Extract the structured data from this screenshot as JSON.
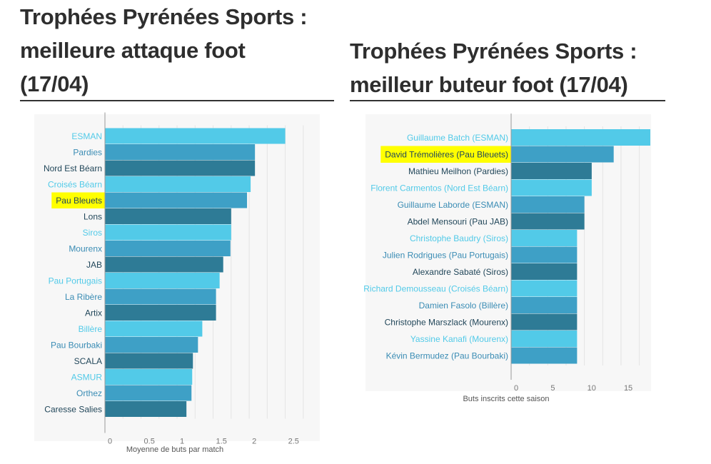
{
  "page": {
    "left_title": [
      "Trophées Pyrénées Sports :",
      "meilleure attaque foot",
      "(17/04)"
    ],
    "right_title": [
      "Trophées Pyrénées Sports :",
      "meilleur buteur foot (17/04)"
    ]
  },
  "colors": {
    "bar_cycle": [
      "#52cae8",
      "#3ea0c6",
      "#2e7b96"
    ],
    "label_cycle": [
      "#52cae8",
      "#3a8cb4",
      "#22475a"
    ],
    "highlight": "#ffff00",
    "grid": "#e4e4e4",
    "axis": "#999999"
  },
  "chart_data": [
    {
      "type": "bar",
      "orientation": "horizontal",
      "categories": [
        "ESMAN",
        "Pardies",
        "Nord Est Béarn",
        "Croisés Béarn",
        "Pau Bleuets",
        "Lons",
        "Siros",
        "Mourenx",
        "JAB",
        "Pau Portugais",
        "La Ribère",
        "Artix",
        "Billère",
        "Pau Bourbaki",
        "SCALA",
        "ASMUR",
        "Orthez",
        "Caresse Salies"
      ],
      "values": [
        2.5,
        2.08,
        2.08,
        2.02,
        1.97,
        1.75,
        1.75,
        1.74,
        1.64,
        1.59,
        1.54,
        1.54,
        1.35,
        1.29,
        1.22,
        1.21,
        1.2,
        1.13
      ],
      "highlighted": "Pau Bleuets",
      "xlabel": "Moyenne de buts par match",
      "ylabel": "",
      "xlim": [
        0,
        2.9
      ],
      "xticks": [
        "0",
        "0.5",
        "1",
        "1.5",
        "2",
        "2.5"
      ],
      "grid": true
    },
    {
      "type": "bar",
      "orientation": "horizontal",
      "categories": [
        "Guillaume Batch (ESMAN)",
        "David Trémolières (Pau Bleuets)",
        "Mathieu Meilhon (Pardies)",
        "Florent Carmentos (Nord Est Béarn)",
        "Guillaume Laborde (ESMAN)",
        "Abdel Mensouri (Pau JAB)",
        "Christophe Baudry (Siros)",
        "Julien Rodrigues (Pau Portugais)",
        "Alexandre Sabaté (Siros)",
        "Richard Demousseau (Croisés Béarn)",
        "Damien Fasolo (Billère)",
        "Christophe Marszlack (Mourenx)",
        "Yassine Kanafi (Mourenx)",
        "Kévin Bermudez (Pau Bourbaki)"
      ],
      "values": [
        19,
        14,
        11,
        11,
        10,
        10,
        9,
        9,
        9,
        9,
        9,
        9,
        9,
        9
      ],
      "highlighted": "David Trémolières (Pau Bleuets)",
      "xlabel": "Buts inscrits cette saison",
      "ylabel": "",
      "xlim": [
        0,
        19
      ],
      "xticks": [
        "0",
        "5",
        "10",
        "15"
      ],
      "grid": true
    }
  ]
}
